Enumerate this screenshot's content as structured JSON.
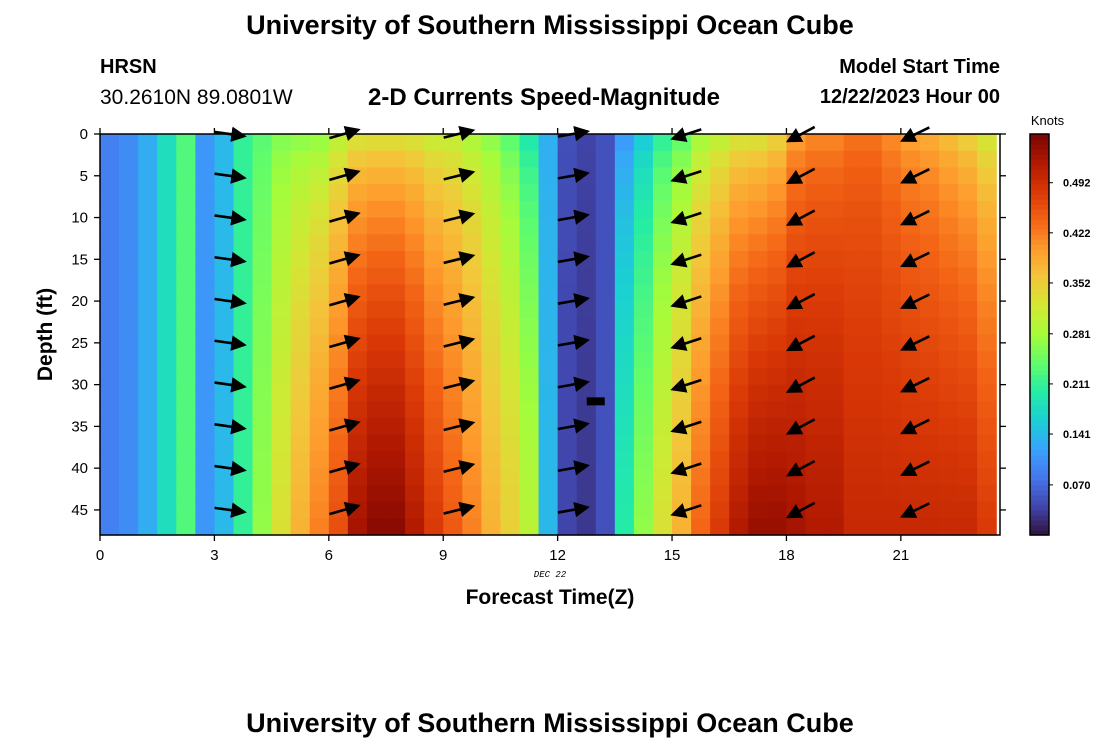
{
  "header": {
    "title": "University of Southern Mississippi Ocean Cube",
    "station": "HRSN",
    "coordinates": "30.2610N  89.0801W",
    "subtitle": "2-D Currents Speed-Magnitude",
    "model_start_label": "Model Start Time",
    "model_start_value": "12/22/2023 Hour 00"
  },
  "footer": {
    "title": "University of Southern Mississippi Ocean Cube"
  },
  "chart_data": {
    "type": "heatmap",
    "title": "2-D Currents Speed-Magnitude",
    "xlabel": "Forecast Time(Z)",
    "ylabel": "Depth (ft)",
    "x_date_label": "DEC 22",
    "colorbar_label": "Knots",
    "colorbar_ticks": [
      "0.070",
      "0.141",
      "0.211",
      "0.281",
      "0.352",
      "0.422",
      "0.492"
    ],
    "colorbar_range": [
      0.0,
      0.56
    ],
    "xlim": [
      0,
      23.6
    ],
    "ylim": [
      48,
      0
    ],
    "x_ticks": [
      0,
      3,
      6,
      9,
      12,
      15,
      18,
      21
    ],
    "y_ticks": [
      0,
      5,
      10,
      15,
      20,
      25,
      30,
      35,
      40,
      45
    ],
    "colormap": [
      "#30123b",
      "#4145ab",
      "#4675ed",
      "#39a2fc",
      "#1bcfd4",
      "#24eca6",
      "#61fc6c",
      "#a4fc3b",
      "#d1e834",
      "#f3c63a",
      "#fe9b2d",
      "#f36315",
      "#d93806",
      "#b11901",
      "#7a0402"
    ],
    "hours": [
      0.5,
      1,
      1.5,
      2,
      2.5,
      3,
      3.5,
      4,
      4.5,
      5,
      5.5,
      6,
      6.5,
      7,
      7.5,
      8,
      8.5,
      9,
      9.5,
      10,
      10.5,
      11,
      11.5,
      12,
      12.5,
      13,
      13.5,
      14,
      14.5,
      15,
      15.5,
      16,
      16.5,
      17,
      17.5,
      18,
      18.5,
      19,
      19.5,
      20,
      20.5,
      21,
      21.5,
      22,
      22.5,
      23,
      23.5
    ],
    "surface_speed": [
      0.09,
      0.1,
      0.13,
      0.18,
      0.23,
      0.11,
      0.14,
      0.21,
      0.23,
      0.25,
      0.25,
      0.25,
      0.28,
      0.3,
      0.3,
      0.3,
      0.3,
      0.29,
      0.29,
      0.27,
      0.25,
      0.22,
      0.18,
      0.13,
      0.05,
      0.04,
      0.05,
      0.1,
      0.14,
      0.19,
      0.22,
      0.26,
      0.28,
      0.3,
      0.3,
      0.32,
      0.38,
      0.4,
      0.4,
      0.42,
      0.42,
      0.4,
      0.38,
      0.37,
      0.35,
      0.33,
      0.3
    ],
    "bottom_speed": [
      0.09,
      0.1,
      0.13,
      0.18,
      0.23,
      0.11,
      0.14,
      0.21,
      0.27,
      0.33,
      0.38,
      0.42,
      0.46,
      0.53,
      0.55,
      0.55,
      0.52,
      0.48,
      0.45,
      0.42,
      0.38,
      0.35,
      0.3,
      0.14,
      0.04,
      0.03,
      0.05,
      0.2,
      0.27,
      0.33,
      0.38,
      0.44,
      0.48,
      0.52,
      0.54,
      0.54,
      0.53,
      0.52,
      0.52,
      0.5,
      0.5,
      0.5,
      0.5,
      0.5,
      0.5,
      0.5,
      0.48
    ],
    "arrow_times": [
      3,
      6,
      9,
      12,
      15,
      18,
      21
    ],
    "arrow_depths": [
      0,
      5,
      10,
      15,
      20,
      25,
      30,
      35,
      40,
      45
    ],
    "arrow_direction_deg": [
      -8,
      16,
      14,
      10,
      198,
      208,
      206
    ],
    "marker": {
      "hour": 13,
      "depth": 32
    }
  }
}
